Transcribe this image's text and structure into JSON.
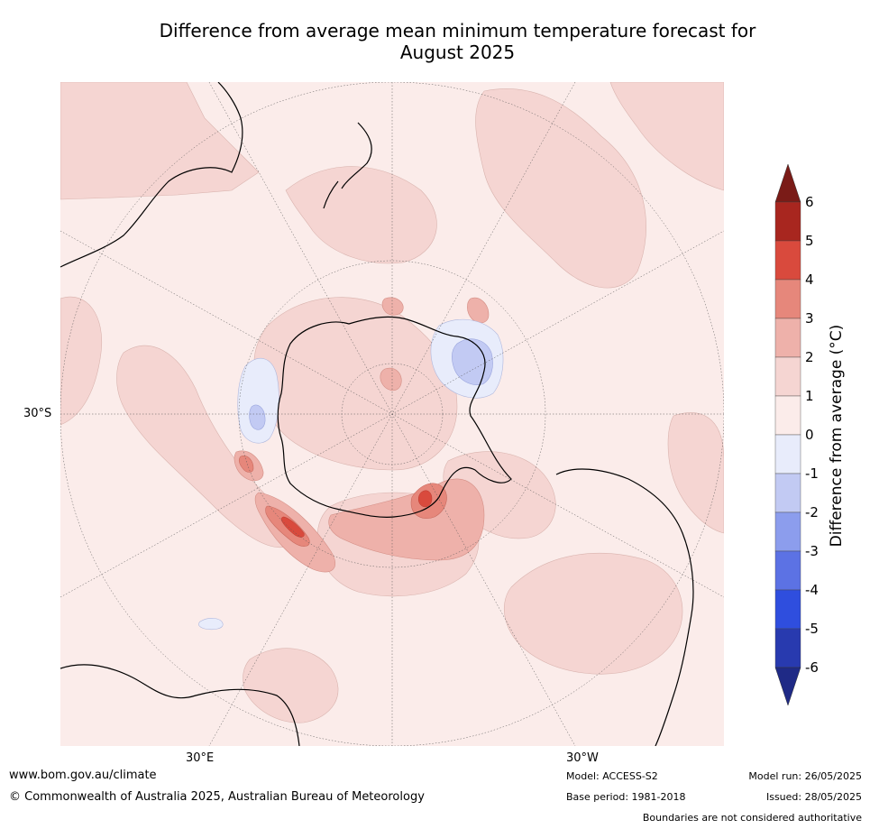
{
  "title_line1": "Difference from average mean minimum temperature forecast for",
  "title_line2": "August 2025",
  "map_labels": {
    "lat_label": "30°S",
    "lon_east": "30°E",
    "lon_west": "30°W"
  },
  "colorbar": {
    "label": "Difference from average (°C)",
    "ticks": [
      "6",
      "5",
      "4",
      "3",
      "2",
      "1",
      "0",
      "-1",
      "-2",
      "-3",
      "-4",
      "-5",
      "-6"
    ],
    "colors": [
      "#7a1b17",
      "#a8261f",
      "#d94a3d",
      "#e6877b",
      "#eeb1aa",
      "#f5d5d2",
      "#fbecea",
      "#e8ecfb",
      "#c2caf3",
      "#8c9ded",
      "#5c72e4",
      "#2f4ede",
      "#283aaf",
      "#1f2a86"
    ]
  },
  "footer": {
    "website": "www.bom.gov.au/climate",
    "copyright": "© Commonwealth of Australia 2025, Australian Bureau of Meteorology",
    "model": "Model: ACCESS-S2",
    "base_period": "Base period: 1981-2018",
    "model_run": "Model run: 26/05/2025",
    "issued": "Issued: 28/05/2025",
    "disclaimer": "Boundaries are not considered authoritative"
  }
}
